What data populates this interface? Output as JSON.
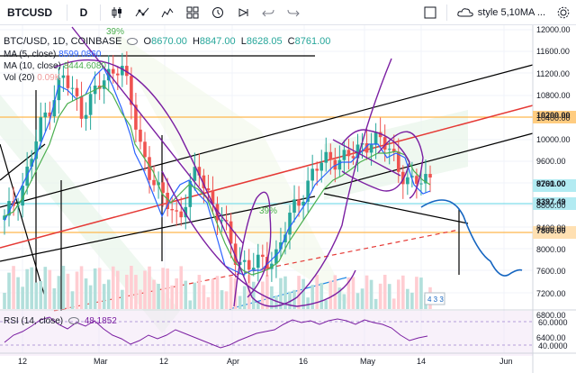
{
  "toolbar": {
    "symbol": "BTCUSD",
    "interval": "D",
    "style_label": "style 5,10MA ..."
  },
  "legend": {
    "title": "BTC/USD, 1D, COINBASE",
    "o_label": "O",
    "o_value": "8670.00",
    "h_label": "H",
    "h_value": "8847.00",
    "l_label": "L",
    "l_value": "8628.05",
    "c_label": "C",
    "c_value": "8761.00",
    "ma5_label": "MA (5, close)",
    "ma5_value": "8599.0860",
    "ma10_label": "MA (10, close)",
    "ma10_value": "8444.6080",
    "vol_label": "Vol (20)",
    "vol_value": "0.09K",
    "rsi_label": "RSI (14, close)",
    "rsi_value": "48.1852"
  },
  "price_axis": {
    "ticks": [
      "12000.00",
      "11600.00",
      "11200.00",
      "10800.00",
      "10400.00",
      "10000.00",
      "9600.00",
      "9200.00",
      "8800.00",
      "8400.00",
      "8000.00",
      "7600.00",
      "7200.00",
      "6800.00",
      "6400.00"
    ],
    "tags": [
      {
        "label": "10200.00",
        "color": "#ffcc80"
      },
      {
        "label": "8761.00",
        "color": "#b2ebf2"
      },
      {
        "label": "8397.49",
        "color": "#b2ebf2"
      },
      {
        "label": "7800.00",
        "color": "#ffe0b2"
      }
    ]
  },
  "rsi_axis": {
    "ticks": [
      "60.0000",
      "40.0000"
    ]
  },
  "time_axis": {
    "ticks": [
      "12",
      "Mar",
      "12",
      "Apr",
      "16",
      "May",
      "14",
      "Jun"
    ]
  },
  "annotations": {
    "pct_top": "39%",
    "pct_mid": "39%",
    "small_badge": "4 3 3"
  },
  "chart_data": {
    "type": "candlestick",
    "title": "BTC/USD, 1D, COINBASE",
    "ylim": [
      6000,
      12200
    ],
    "last_close": 8761.0,
    "horizontal_levels": [
      10200.0,
      8397.49,
      7800.0
    ],
    "close_path_approx": [
      {
        "x": "Feb 6",
        "y": 7700
      },
      {
        "x": "Feb 10",
        "y": 8600
      },
      {
        "x": "Feb 15",
        "y": 10100
      },
      {
        "x": "Feb 20",
        "y": 11100
      },
      {
        "x": "Feb 25",
        "y": 10300
      },
      {
        "x": "Mar 1",
        "y": 10900
      },
      {
        "x": "Mar 5",
        "y": 11500
      },
      {
        "x": "Mar 10",
        "y": 9500
      },
      {
        "x": "Mar 15",
        "y": 8300
      },
      {
        "x": "Mar 18",
        "y": 7800
      },
      {
        "x": "Mar 22",
        "y": 8900
      },
      {
        "x": "Mar 27",
        "y": 7900
      },
      {
        "x": "Apr 1",
        "y": 6800
      },
      {
        "x": "Apr 6",
        "y": 6600
      },
      {
        "x": "Apr 11",
        "y": 6900
      },
      {
        "x": "Apr 14",
        "y": 8000
      },
      {
        "x": "Apr 20",
        "y": 8900
      },
      {
        "x": "Apr 25",
        "y": 9200
      },
      {
        "x": "May 1",
        "y": 9200
      },
      {
        "x": "May 5",
        "y": 9700
      },
      {
        "x": "May 9",
        "y": 9300
      },
      {
        "x": "May 12",
        "y": 8500
      },
      {
        "x": "May 14",
        "y": 8761
      }
    ],
    "rsi_range": [
      30,
      70
    ],
    "rsi_last": 48.1852
  }
}
